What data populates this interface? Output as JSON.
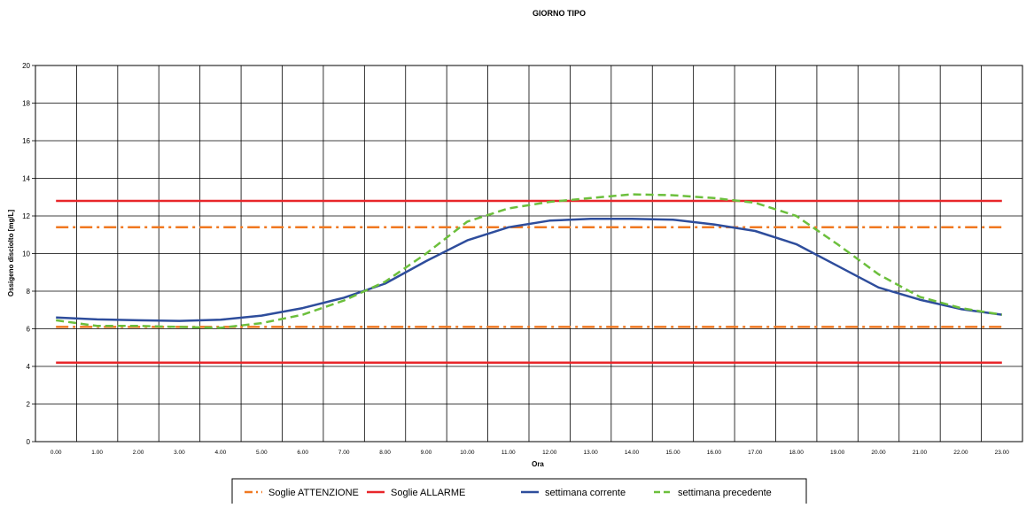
{
  "chart_data": {
    "type": "line",
    "title": "GIORNO TIPO",
    "xlabel": "Ora",
    "ylabel": "Ossigeno disciolto [mg/L]",
    "ylim": [
      0,
      20
    ],
    "yticks": [
      "0",
      "2",
      "4",
      "6",
      "8",
      "10",
      "12",
      "14",
      "16",
      "18",
      "20"
    ],
    "categories": [
      "0.00",
      "1.00",
      "2.00",
      "3.00",
      "4.00",
      "5.00",
      "6.00",
      "7.00",
      "8.00",
      "9.00",
      "10.00",
      "11.00",
      "12.00",
      "13.00",
      "14.00",
      "15.00",
      "16.00",
      "17.00",
      "18.00",
      "19.00",
      "20.00",
      "21.00",
      "22.00",
      "23.00"
    ],
    "grid": true,
    "legend_position": "bottom",
    "series": [
      {
        "name": "Soglie ATTENZIONE",
        "color": "#f07820",
        "style": "dashdot",
        "values": [
          11.4,
          11.4,
          11.4,
          11.4,
          11.4,
          11.4,
          11.4,
          11.4,
          11.4,
          11.4,
          11.4,
          11.4,
          11.4,
          11.4,
          11.4,
          11.4,
          11.4,
          11.4,
          11.4,
          11.4,
          11.4,
          11.4,
          11.4,
          11.4
        ]
      },
      {
        "name": "Soglie ATTENZIONE",
        "color": "#f07820",
        "style": "dashdot",
        "values": [
          6.1,
          6.1,
          6.1,
          6.1,
          6.1,
          6.1,
          6.1,
          6.1,
          6.1,
          6.1,
          6.1,
          6.1,
          6.1,
          6.1,
          6.1,
          6.1,
          6.1,
          6.1,
          6.1,
          6.1,
          6.1,
          6.1,
          6.1,
          6.1
        ]
      },
      {
        "name": "Soglie ALLARME",
        "color": "#e8262a",
        "style": "solid",
        "values": [
          12.8,
          12.8,
          12.8,
          12.8,
          12.8,
          12.8,
          12.8,
          12.8,
          12.8,
          12.8,
          12.8,
          12.8,
          12.8,
          12.8,
          12.8,
          12.8,
          12.8,
          12.8,
          12.8,
          12.8,
          12.8,
          12.8,
          12.8,
          12.8
        ]
      },
      {
        "name": "Soglie ALLARME",
        "color": "#e8262a",
        "style": "solid",
        "values": [
          4.2,
          4.2,
          4.2,
          4.2,
          4.2,
          4.2,
          4.2,
          4.2,
          4.2,
          4.2,
          4.2,
          4.2,
          4.2,
          4.2,
          4.2,
          4.2,
          4.2,
          4.2,
          4.2,
          4.2,
          4.2,
          4.2,
          4.2,
          4.2
        ]
      },
      {
        "name": "settimana corrente",
        "color": "#2e4d9c",
        "style": "solid",
        "values": [
          6.6,
          6.5,
          6.45,
          6.42,
          6.48,
          6.7,
          7.1,
          7.65,
          8.4,
          9.6,
          10.7,
          11.4,
          11.75,
          11.85,
          11.85,
          11.8,
          11.55,
          11.2,
          10.5,
          9.35,
          8.2,
          7.55,
          7.05,
          6.75
        ]
      },
      {
        "name": "settimana precedente",
        "color": "#6cbf3c",
        "style": "dashed",
        "values": [
          6.45,
          6.15,
          6.15,
          6.1,
          6.05,
          6.3,
          6.75,
          7.5,
          8.5,
          10.0,
          11.7,
          12.4,
          12.75,
          12.95,
          13.15,
          13.1,
          12.95,
          12.7,
          12.0,
          10.5,
          8.9,
          7.7,
          7.1,
          6.75
        ]
      }
    ],
    "legend": [
      {
        "label": "Soglie ATTENZIONE",
        "color": "#f07820",
        "style": "dashdot"
      },
      {
        "label": "Soglie ALLARME",
        "color": "#e8262a",
        "style": "solid"
      },
      {
        "label": "settimana corrente",
        "color": "#2e4d9c",
        "style": "solid"
      },
      {
        "label": "settimana precedente",
        "color": "#6cbf3c",
        "style": "dashed"
      }
    ]
  }
}
